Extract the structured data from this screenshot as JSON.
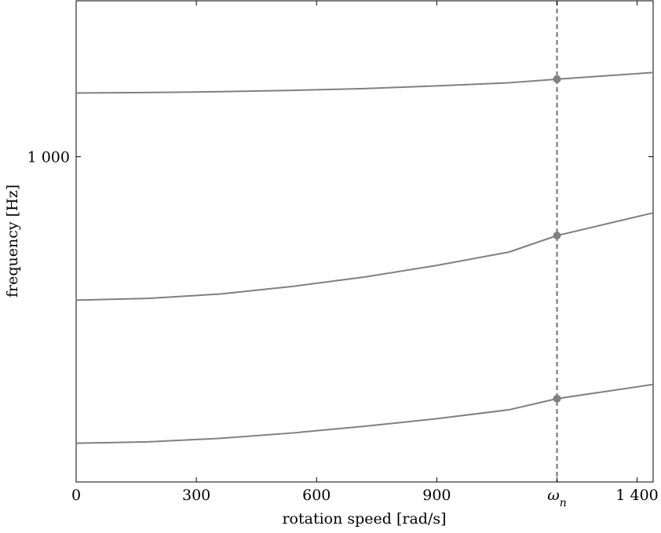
{
  "chart_data": {
    "type": "line",
    "title": "",
    "xlabel": "rotation speed [rad/s]",
    "ylabel": "frequency [Hz]",
    "xlim": [
      0,
      1440
    ],
    "ylim": [
      270,
      1350
    ],
    "x_ticks": [
      {
        "value": 0,
        "label": "0"
      },
      {
        "value": 300,
        "label": "300"
      },
      {
        "value": 600,
        "label": "600"
      },
      {
        "value": 900,
        "label": "900"
      },
      {
        "value": 1200,
        "label": "ω",
        "subscript": "n"
      },
      {
        "value": 1400,
        "label": "1 400"
      }
    ],
    "y_ticks": [
      {
        "value": 1000,
        "label": "1 000"
      }
    ],
    "grid": false,
    "legend": "none",
    "line_color": "#808080",
    "marker_color": "#808080",
    "marker_line_color": "#707070",
    "x": [
      0,
      180,
      360,
      540,
      720,
      900,
      1080,
      1200,
      1440
    ],
    "series": [
      {
        "values": [
          357,
          360,
          368,
          380,
          395,
          412,
          432,
          457,
          489
        ]
      },
      {
        "values": [
          678,
          682,
          692,
          709,
          730,
          756,
          786,
          823,
          874
        ]
      },
      {
        "values": [
          1143,
          1144,
          1146,
          1149,
          1153,
          1159,
          1166,
          1174,
          1189
        ]
      }
    ],
    "marker_x": 1200
  }
}
